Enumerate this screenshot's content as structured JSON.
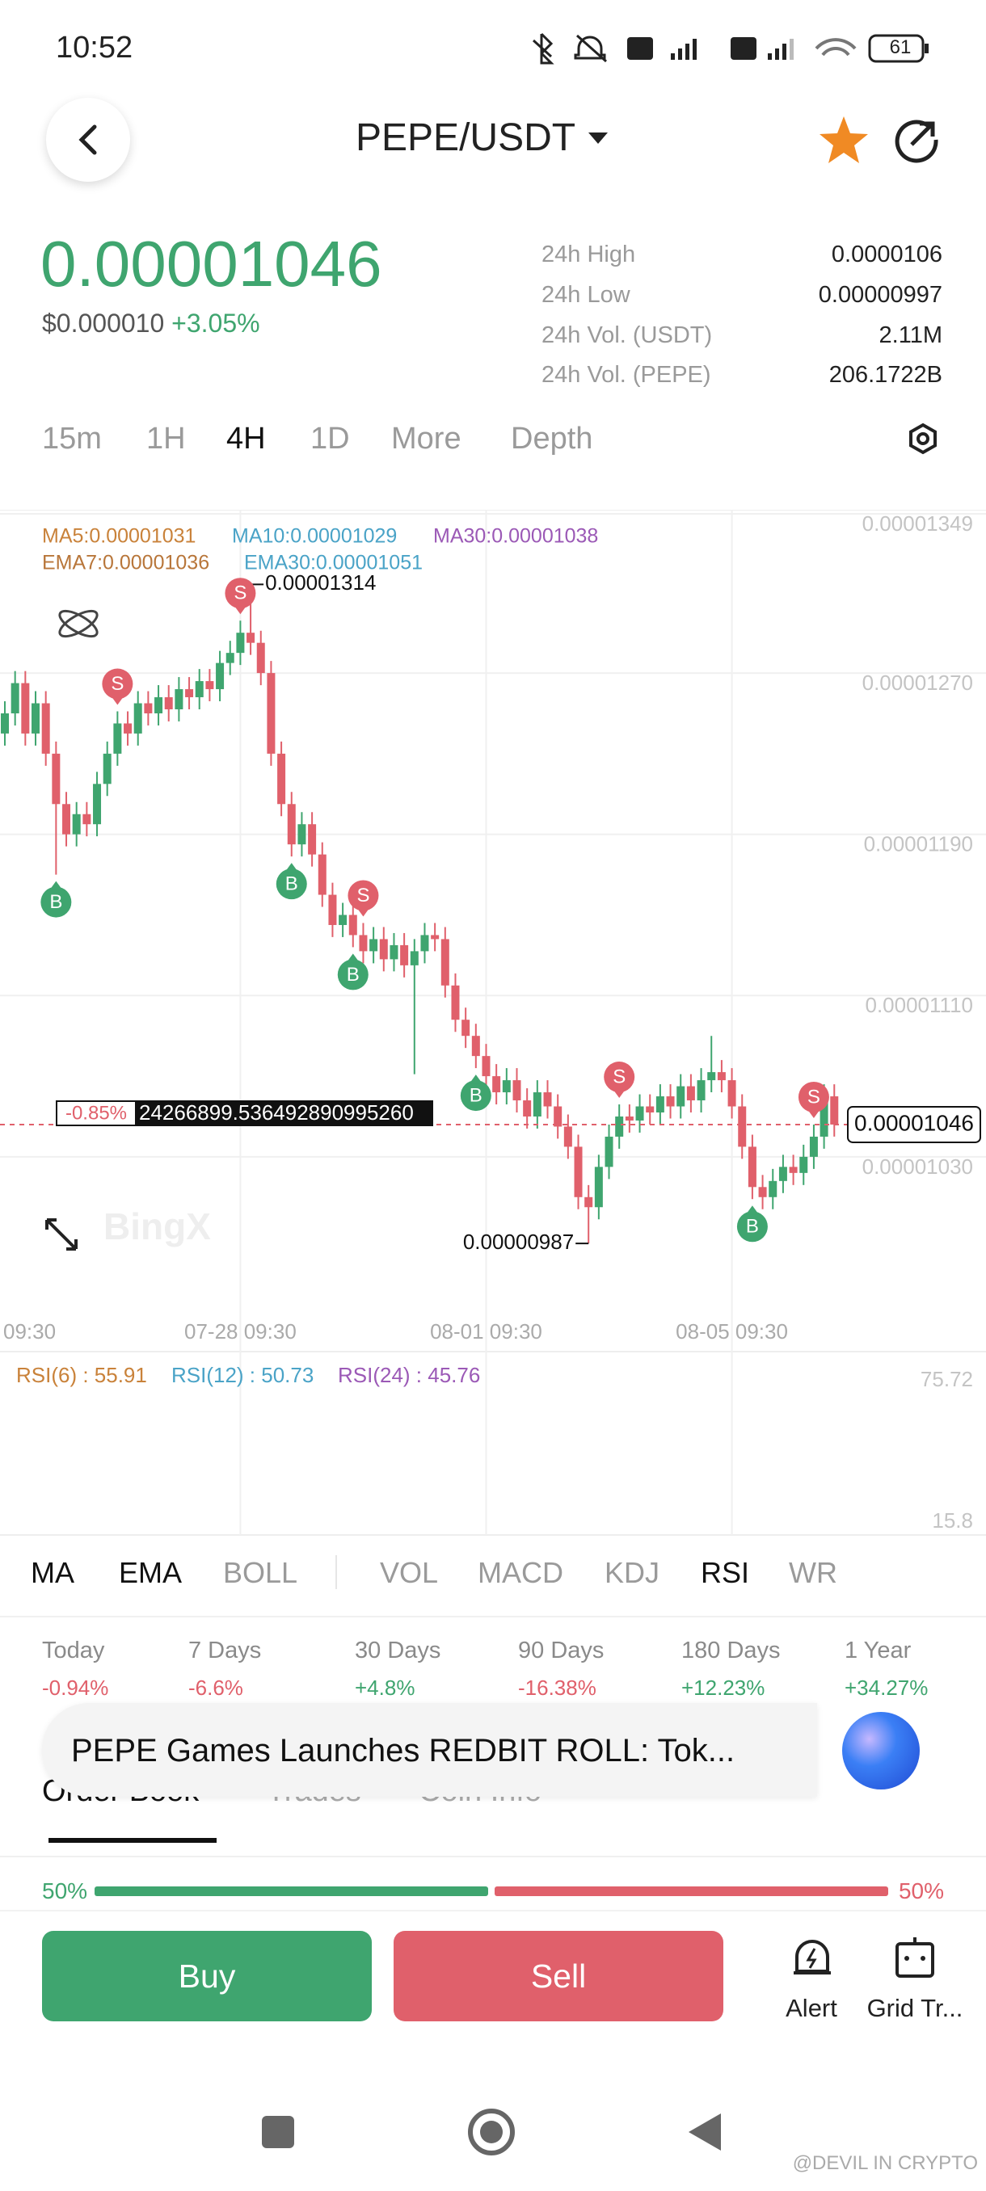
{
  "status_bar": {
    "time": "10:52",
    "battery": "61"
  },
  "header": {
    "title": "PEPE/USDT"
  },
  "ticker": {
    "price": "0.00001046",
    "usd_price": "$0.000010",
    "change": "+3.05%",
    "stats": [
      {
        "label": "24h High",
        "value": "0.0000106"
      },
      {
        "label": "24h Low",
        "value": "0.00000997"
      },
      {
        "label": "24h Vol. (USDT)",
        "value": "2.11M"
      },
      {
        "label": "24h Vol. (PEPE)",
        "value": "206.1722B"
      }
    ]
  },
  "timeframes": [
    "15m",
    "1H",
    "4H",
    "1D",
    "More",
    "Depth"
  ],
  "chart_data": {
    "type": "candlestick",
    "legend": [
      "MA5:0.00001031",
      "MA10:0.00001029",
      "MA30:0.00001038",
      "EMA7:0.00001036",
      "EMA30:0.00001051"
    ],
    "x": [
      "09:30",
      null,
      null,
      null,
      null,
      null,
      null,
      null,
      null,
      null,
      null,
      null,
      null,
      null,
      null,
      null,
      null,
      null,
      null,
      null,
      null,
      null,
      null,
      "07-28 09:30",
      null,
      null,
      null,
      null,
      null,
      null,
      null,
      null,
      null,
      null,
      null,
      null,
      null,
      null,
      null,
      null,
      null,
      null,
      null,
      null,
      null,
      null,
      null,
      "08-01 09:30",
      null,
      null,
      null,
      null,
      null,
      null,
      null,
      null,
      null,
      null,
      null,
      null,
      null,
      null,
      null,
      null,
      null,
      null,
      null,
      null,
      null,
      null,
      null,
      "08-05 09:30",
      null,
      null,
      null,
      null,
      null,
      null,
      null,
      null,
      null,
      null
    ],
    "candles": [
      [
        1.24e-05,
        1.256e-05,
        1.234e-05,
        1.25e-05
      ],
      [
        1.25e-05,
        1.271e-05,
        1.244e-05,
        1.265e-05
      ],
      [
        1.265e-05,
        1.271e-05,
        1.234e-05,
        1.24e-05
      ],
      [
        1.24e-05,
        1.261e-05,
        1.234e-05,
        1.255e-05
      ],
      [
        1.255e-05,
        1.261e-05,
        1.224e-05,
        1.23e-05
      ],
      [
        1.23e-05,
        1.236e-05,
        1.17e-05,
        1.205e-05
      ],
      [
        1.205e-05,
        1.211e-05,
        1.184e-05,
        1.19e-05
      ],
      [
        1.19e-05,
        1.206e-05,
        1.184e-05,
        1.2e-05
      ],
      [
        1.2e-05,
        1.206e-05,
        1.189e-05,
        1.195e-05
      ],
      [
        1.195e-05,
        1.221e-05,
        1.189e-05,
        1.215e-05
      ],
      [
        1.215e-05,
        1.236e-05,
        1.209e-05,
        1.23e-05
      ],
      [
        1.23e-05,
        1.251e-05,
        1.224e-05,
        1.245e-05
      ],
      [
        1.245e-05,
        1.251e-05,
        1.234e-05,
        1.24e-05
      ],
      [
        1.24e-05,
        1.261e-05,
        1.234e-05,
        1.255e-05
      ],
      [
        1.255e-05,
        1.261e-05,
        1.244e-05,
        1.25e-05
      ],
      [
        1.25e-05,
        1.264e-05,
        1.244e-05,
        1.258e-05
      ],
      [
        1.258e-05,
        1.264e-05,
        1.246e-05,
        1.252e-05
      ],
      [
        1.252e-05,
        1.268e-05,
        1.246e-05,
        1.262e-05
      ],
      [
        1.262e-05,
        1.268e-05,
        1.252e-05,
        1.258e-05
      ],
      [
        1.258e-05,
        1.272e-05,
        1.252e-05,
        1.266e-05
      ],
      [
        1.266e-05,
        1.272e-05,
        1.256e-05,
        1.262e-05
      ],
      [
        1.262e-05,
        1.281e-05,
        1.256e-05,
        1.275e-05
      ],
      [
        1.275e-05,
        1.286e-05,
        1.269e-05,
        1.28e-05
      ],
      [
        1.28e-05,
        1.296e-05,
        1.274e-05,
        1.29e-05
      ],
      [
        1.29e-05,
        1.314e-05,
        1.279e-05,
        1.285e-05
      ],
      [
        1.285e-05,
        1.291e-05,
        1.264e-05,
        1.27e-05
      ],
      [
        1.27e-05,
        1.276e-05,
        1.224e-05,
        1.23e-05
      ],
      [
        1.23e-05,
        1.236e-05,
        1.199e-05,
        1.205e-05
      ],
      [
        1.205e-05,
        1.211e-05,
        1.179e-05,
        1.185e-05
      ],
      [
        1.185e-05,
        1.201e-05,
        1.179e-05,
        1.195e-05
      ],
      [
        1.195e-05,
        1.201e-05,
        1.174e-05,
        1.18e-05
      ],
      [
        1.18e-05,
        1.186e-05,
        1.154e-05,
        1.16e-05
      ],
      [
        1.16e-05,
        1.166e-05,
        1.139e-05,
        1.145e-05
      ],
      [
        1.145e-05,
        1.156e-05,
        1.139e-05,
        1.15e-05
      ],
      [
        1.15e-05,
        1.156e-05,
        1.134e-05,
        1.14e-05
      ],
      [
        1.14e-05,
        1.146e-05,
        1.126e-05,
        1.132e-05
      ],
      [
        1.132e-05,
        1.144e-05,
        1.126e-05,
        1.138e-05
      ],
      [
        1.138e-05,
        1.144e-05,
        1.122e-05,
        1.128e-05
      ],
      [
        1.128e-05,
        1.141e-05,
        1.122e-05,
        1.135e-05
      ],
      [
        1.135e-05,
        1.141e-05,
        1.119e-05,
        1.125e-05
      ],
      [
        1.125e-05,
        1.138e-05,
        1.071e-05,
        1.132e-05
      ],
      [
        1.132e-05,
        1.146e-05,
        1.126e-05,
        1.14e-05
      ],
      [
        1.14e-05,
        1.146e-05,
        1.132e-05,
        1.138e-05
      ],
      [
        1.138e-05,
        1.144e-05,
        1.109e-05,
        1.115e-05
      ],
      [
        1.115e-05,
        1.121e-05,
        1.092e-05,
        1.098e-05
      ],
      [
        1.098e-05,
        1.104e-05,
        1.084e-05,
        1.09e-05
      ],
      [
        1.09e-05,
        1.096e-05,
        1.074e-05,
        1.08e-05
      ],
      [
        1.08e-05,
        1.086e-05,
        1.064e-05,
        1.07e-05
      ],
      [
        1.07e-05,
        1.076e-05,
        1.056e-05,
        1.062e-05
      ],
      [
        1.062e-05,
        1.074e-05,
        1.056e-05,
        1.068e-05
      ],
      [
        1.068e-05,
        1.074e-05,
        1.052e-05,
        1.058e-05
      ],
      [
        1.058e-05,
        1.064e-05,
        1.044e-05,
        1.05e-05
      ],
      [
        1.05e-05,
        1.068e-05,
        1.044e-05,
        1.062e-05
      ],
      [
        1.062e-05,
        1.068e-05,
        1.049e-05,
        1.055e-05
      ],
      [
        1.055e-05,
        1.061e-05,
        1.039e-05,
        1.045e-05
      ],
      [
        1.045e-05,
        1.051e-05,
        1.029e-05,
        1.035e-05
      ],
      [
        1.035e-05,
        1.041e-05,
        1.004e-05,
        1.01e-05
      ],
      [
        1.01e-05,
        1.016e-05,
        9.87e-06,
        1.005e-05
      ],
      [
        1.005e-05,
        1.031e-05,
        9.99e-06,
        1.025e-05
      ],
      [
        1.025e-05,
        1.046e-05,
        1.019e-05,
        1.04e-05
      ],
      [
        1.04e-05,
        1.056e-05,
        1.034e-05,
        1.05e-05
      ],
      [
        1.05e-05,
        1.056e-05,
        1.042e-05,
        1.048e-05
      ],
      [
        1.048e-05,
        1.061e-05,
        1.042e-05,
        1.055e-05
      ],
      [
        1.055e-05,
        1.061e-05,
        1.046e-05,
        1.052e-05
      ],
      [
        1.052e-05,
        1.066e-05,
        1.046e-05,
        1.06e-05
      ],
      [
        1.06e-05,
        1.066e-05,
        1.049e-05,
        1.055e-05
      ],
      [
        1.055e-05,
        1.071e-05,
        1.049e-05,
        1.065e-05
      ],
      [
        1.065e-05,
        1.071e-05,
        1.052e-05,
        1.058e-05
      ],
      [
        1.058e-05,
        1.074e-05,
        1.052e-05,
        1.068e-05
      ],
      [
        1.068e-05,
        1.09e-05,
        1.062e-05,
        1.072e-05
      ],
      [
        1.072e-05,
        1.078e-05,
        1.062e-05,
        1.068e-05
      ],
      [
        1.068e-05,
        1.074e-05,
        1.049e-05,
        1.055e-05
      ],
      [
        1.055e-05,
        1.061e-05,
        1.029e-05,
        1.035e-05
      ],
      [
        1.035e-05,
        1.041e-05,
        1.009e-05,
        1.015e-05
      ],
      [
        1.015e-05,
        1.021e-05,
        1.004e-05,
        1.01e-05
      ],
      [
        1.01e-05,
        1.024e-05,
        1.004e-05,
        1.018e-05
      ],
      [
        1.018e-05,
        1.031e-05,
        1.012e-05,
        1.025e-05
      ],
      [
        1.025e-05,
        1.031e-05,
        1.016e-05,
        1.022e-05
      ],
      [
        1.022e-05,
        1.036e-05,
        1.016e-05,
        1.03e-05
      ],
      [
        1.03e-05,
        1.046e-05,
        1.024e-05,
        1.04e-05
      ],
      [
        1.04e-05,
        1.066e-05,
        1.034e-05,
        1.06e-05
      ],
      [
        1.06e-05,
        1.066e-05,
        1.04e-05,
        1.046e-05
      ]
    ],
    "ylim": [
      9.53e-06,
      1.351e-05
    ],
    "yticks": [
      1.349e-05,
      {
        "value": 1.27e-05,
        "label": "0.00001270"
      },
      {
        "value": 1.19e-05,
        "label": "0.00001190"
      },
      {
        "value": 1.11e-05,
        "label": "0.00001110"
      },
      {
        "value": 1.03e-05,
        "label": "0.00001030"
      }
    ],
    "grid": true,
    "colors": {
      "up": "#3fa56f",
      "down": "#e0606b"
    },
    "signal_labels": {
      "buy": "B",
      "sell": "S"
    },
    "crosshair": {
      "change": "-0.85%",
      "value": "24266899.536492890995260"
    },
    "rsi": {
      "legend": [
        "RSI(6) : 55.91",
        "RSI(12) : 50.73",
        "RSI(24) : 45.76"
      ],
      "ylim": [
        15.8,
        75.72
      ],
      "yticks": [
        75.72,
        15.8
      ]
    },
    "watermark": "BingX"
  },
  "indicators": [
    "MA",
    "EMA",
    "BOLL",
    "VOL",
    "MACD",
    "KDJ",
    "RSI",
    "WR"
  ],
  "performance": [
    {
      "label": "Today",
      "value": "-0.94%"
    },
    {
      "label": "7 Days",
      "value": "-6.6%"
    },
    {
      "label": "30 Days",
      "value": "+4.8%"
    },
    {
      "label": "90 Days",
      "value": "-16.38%"
    },
    {
      "label": "180 Days",
      "value": "+12.23%"
    },
    {
      "label": "1 Year",
      "value": "+34.27%"
    }
  ],
  "news": "PEPE Games Launches REDBIT ROLL: Tok...",
  "tabs": [
    "Order Book",
    "Trades",
    "Coin Info"
  ],
  "ratio": {
    "values": [
      50,
      50
    ],
    "value_labels": [
      "50%",
      "50%"
    ]
  },
  "actions": {
    "buy": "Buy",
    "sell": "Sell",
    "alert": "Alert",
    "grid": "Grid Tr..."
  },
  "credit": "@DEVIL IN CRYPTO"
}
